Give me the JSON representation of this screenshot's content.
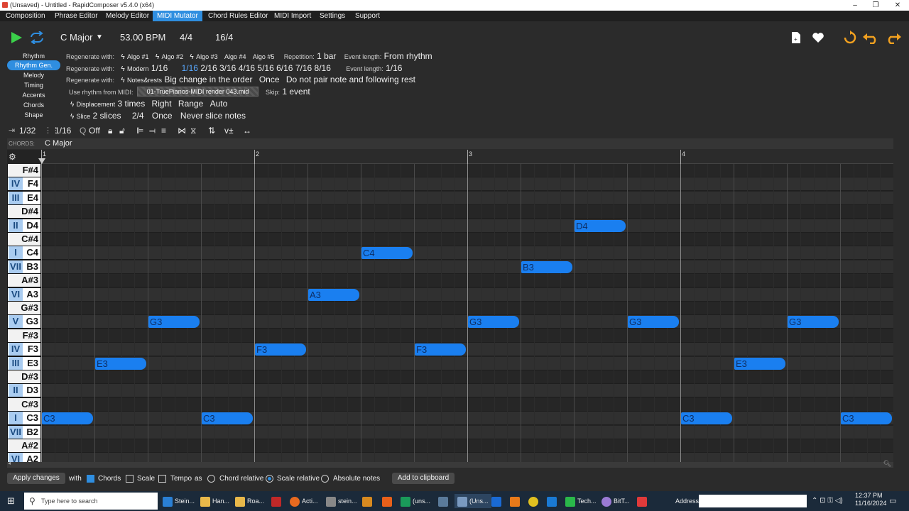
{
  "window": {
    "title": "(Unsaved) - Untitled - RapidComposer v5.4.0 (x64)",
    "minimize": "–",
    "maximize": "❐",
    "close": "✕"
  },
  "menu": [
    "Composition",
    "Phrase Editor",
    "Melody Editor",
    "MIDI Mutator",
    "Chord Rules Editor",
    "MIDI Import",
    "Settings",
    "Support"
  ],
  "transport": {
    "key": "C Major",
    "bpm": "53.00 BPM",
    "time_sig": "4/4",
    "grid": "16/4"
  },
  "subnav": [
    "Rhythm",
    "Rhythm Gen.",
    "Melody",
    "Timing",
    "Accents",
    "Chords",
    "Shape"
  ],
  "settings": {
    "row1_label": "Regenerate with:",
    "algos": [
      "Algo #1",
      "Algo #2",
      "Algo #3",
      "Algo #4",
      "Algo #5"
    ],
    "repetition_label": "Repetition:",
    "repetition": "1 bar",
    "event_length_label": "Event length:",
    "event_length_1": "From rhythm",
    "row2_label": "Regenerate with:",
    "modern": "Modern",
    "modern_value": "1/16",
    "steps": [
      "1/16",
      "2/16",
      "3/16",
      "4/16",
      "5/16",
      "6/16",
      "7/16",
      "8/16"
    ],
    "event_length_2": "1/16",
    "row3_label": "Regenerate with:",
    "notes_rests": "Notes&rests",
    "big_change": "Big change in the order",
    "once_1": "Once",
    "no_pair": "Do not pair note and following rest",
    "use_rhythm_label": "Use rhythm from MIDI:",
    "midi_file": "01-TruePianos-MIDI render 043.mid",
    "skip_label": "Skip:",
    "skip": "1 event",
    "displacement": "Displacement",
    "disp_times": "3 times",
    "disp_dir": "Right",
    "disp_range": "Range",
    "disp_auto": "Auto",
    "slice": "Slice",
    "slice_count": "2 slices",
    "slice_frac": "2/4",
    "once_2": "Once",
    "never_slice": "Never slice notes"
  },
  "tools": {
    "snap": "1/32",
    "grid": "1/16",
    "quantize_label": "Q",
    "quantize": "Off"
  },
  "chords": {
    "label": "CHORDS:",
    "value": "C Major"
  },
  "ruler": [
    "1",
    "2",
    "3",
    "4"
  ],
  "keys": [
    {
      "deg": "",
      "name": "F#4",
      "black": true
    },
    {
      "deg": "IV",
      "name": "F4",
      "black": false
    },
    {
      "deg": "III",
      "name": "E4",
      "black": false
    },
    {
      "deg": "",
      "name": "D#4",
      "black": true
    },
    {
      "deg": "II",
      "name": "D4",
      "black": false
    },
    {
      "deg": "",
      "name": "C#4",
      "black": true
    },
    {
      "deg": "I",
      "name": "C4",
      "black": false
    },
    {
      "deg": "VII",
      "name": "B3",
      "black": false
    },
    {
      "deg": "",
      "name": "A#3",
      "black": true
    },
    {
      "deg": "VI",
      "name": "A3",
      "black": false
    },
    {
      "deg": "",
      "name": "G#3",
      "black": true
    },
    {
      "deg": "V",
      "name": "G3",
      "black": false
    },
    {
      "deg": "",
      "name": "F#3",
      "black": true
    },
    {
      "deg": "IV",
      "name": "F3",
      "black": false
    },
    {
      "deg": "III",
      "name": "E3",
      "black": false
    },
    {
      "deg": "",
      "name": "D#3",
      "black": true
    },
    {
      "deg": "II",
      "name": "D3",
      "black": false
    },
    {
      "deg": "",
      "name": "C#3",
      "black": true
    },
    {
      "deg": "I",
      "name": "C3",
      "black": false
    },
    {
      "deg": "VII",
      "name": "B2",
      "black": false
    },
    {
      "deg": "",
      "name": "A#2",
      "black": true
    },
    {
      "deg": "VI",
      "name": "A2",
      "black": false
    }
  ],
  "notes": [
    {
      "pitch": "C3",
      "start": 0,
      "length": 1
    },
    {
      "pitch": "E3",
      "start": 1,
      "length": 1
    },
    {
      "pitch": "G3",
      "start": 2,
      "length": 1
    },
    {
      "pitch": "C3",
      "start": 3,
      "length": 1
    },
    {
      "pitch": "F3",
      "start": 4,
      "length": 1
    },
    {
      "pitch": "A3",
      "start": 5,
      "length": 1
    },
    {
      "pitch": "C4",
      "start": 6,
      "length": 1
    },
    {
      "pitch": "F3",
      "start": 7,
      "length": 1
    },
    {
      "pitch": "G3",
      "start": 8,
      "length": 1
    },
    {
      "pitch": "B3",
      "start": 9,
      "length": 1
    },
    {
      "pitch": "D4",
      "start": 10,
      "length": 1
    },
    {
      "pitch": "G3",
      "start": 11,
      "length": 1
    },
    {
      "pitch": "C3",
      "start": 12,
      "length": 1
    },
    {
      "pitch": "E3",
      "start": 13,
      "length": 1
    },
    {
      "pitch": "G3",
      "start": 14,
      "length": 1
    },
    {
      "pitch": "C3",
      "start": 15,
      "length": 1
    }
  ],
  "bottom": {
    "apply": "Apply changes",
    "with": "with",
    "chords": "Chords",
    "scale": "Scale",
    "tempo": "Tempo",
    "as": "as",
    "chord_relative": "Chord relative",
    "scale_relative": "Scale relative",
    "absolute_notes": "Absolute notes",
    "clipboard": "Add to clipboard"
  },
  "taskbar": {
    "search": "Type here to search",
    "apps": [
      "Stein...",
      "Han...",
      "Roa...",
      "Acti...",
      "stein...",
      "(uns...",
      "(Uns...",
      "Tech...",
      "BitT..."
    ],
    "address_label": "Address",
    "time": "12:37 PM",
    "date": "11/16/2024"
  },
  "colors": {
    "accent": "#2f8ee0",
    "note": "#1a7ff0",
    "play": "#3bd04a",
    "loop": "#2f8ee0",
    "undo": "#f0a020"
  }
}
